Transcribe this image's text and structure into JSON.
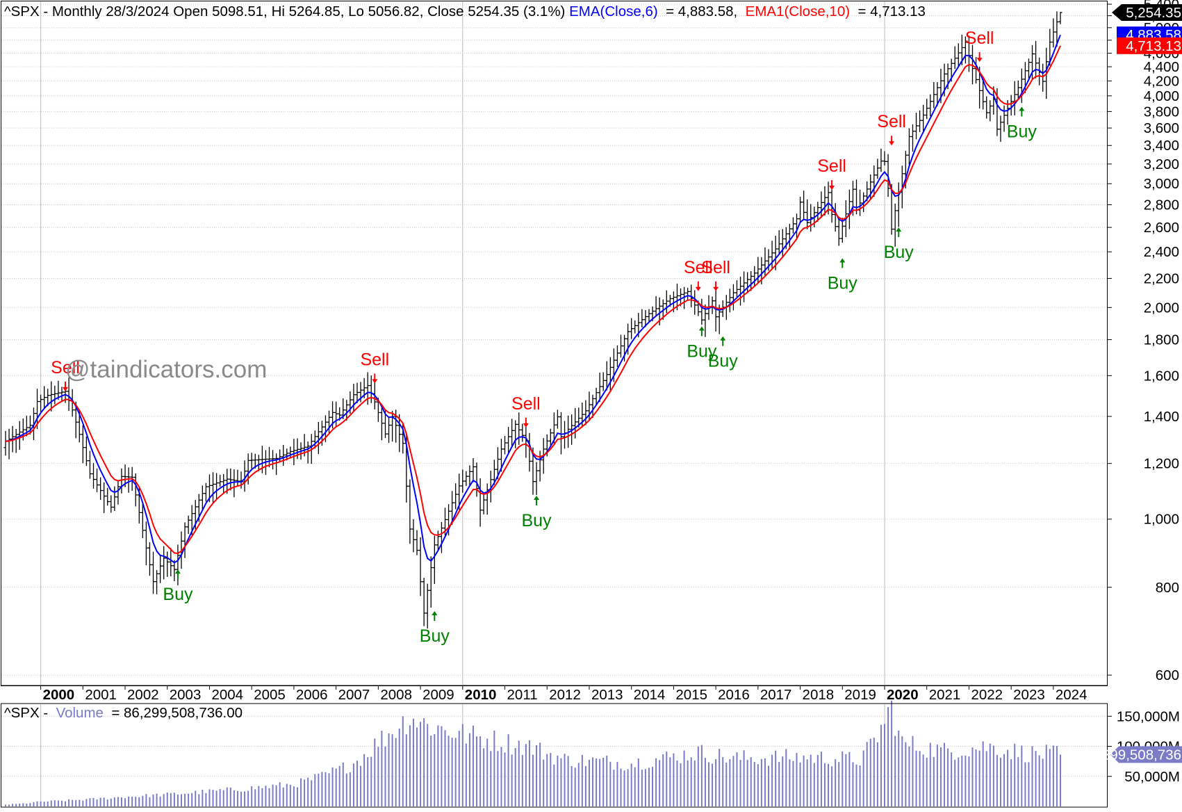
{
  "header": {
    "symbol_line": "^SPX - Monthly 28/3/2024 Open 5098.51, Hi 5264.85, Lo 5056.82, Close 5254.35 (3.1%)",
    "ema6_label": "EMA(Close,6)",
    "ema6_value": " = 4,883.58, ",
    "ema10_label": "EMA1(Close,10)",
    "ema10_value": " = 4,713.13"
  },
  "watermark": "@taindicators.com",
  "volume_header": {
    "prefix": "^SPX - ",
    "label": "Volume",
    "value": " = 86,299,508,736.00"
  },
  "colors": {
    "price_bars": "#000000",
    "ema6": "#0000ff",
    "ema10": "#ff0000",
    "volume": "#7b7bc8",
    "buy": "#008000",
    "sell": "#ff0000",
    "grid": "#c8c8c8",
    "watermark": "#8a8a8a"
  },
  "chart_data": [
    {
      "type": "ohlc",
      "ylim": [
        580,
        5450
      ],
      "y_ticks": [
        600,
        800,
        1000,
        1200,
        1400,
        1600,
        1800,
        2000,
        2200,
        2400,
        2600,
        2800,
        3000,
        3200,
        3400,
        3600,
        3800,
        4000,
        4200,
        4400,
        4600,
        4800,
        5000,
        5200,
        5400
      ],
      "y_tick_labels": [
        "600",
        "800",
        "1,000",
        "1,200",
        "1,400",
        "1,600",
        "1,800",
        "2,000",
        "2,200",
        "2,400",
        "2,600",
        "2,800",
        "3,000",
        "3,200",
        "3,400",
        "3,600",
        "3,800",
        "4,000",
        "4,200",
        "4,400",
        "4,600",
        "4,800",
        "5,000",
        "5,200",
        "5,400"
      ],
      "x_range": [
        "1999-03",
        "2024-03"
      ],
      "x_ticks": [
        {
          "label": "2000",
          "date": "2000-01",
          "bold": true
        },
        {
          "label": "2001",
          "date": "2001-01"
        },
        {
          "label": "2002",
          "date": "2002-01"
        },
        {
          "label": "2003",
          "date": "2003-01"
        },
        {
          "label": "2004",
          "date": "2004-01"
        },
        {
          "label": "2005",
          "date": "2005-01"
        },
        {
          "label": "2006",
          "date": "2006-01"
        },
        {
          "label": "2007",
          "date": "2007-01"
        },
        {
          "label": "2008",
          "date": "2008-01"
        },
        {
          "label": "2009",
          "date": "2009-01"
        },
        {
          "label": "2010",
          "date": "2010-01",
          "bold": true
        },
        {
          "label": "2011",
          "date": "2011-01"
        },
        {
          "label": "2012",
          "date": "2012-01"
        },
        {
          "label": "2013",
          "date": "2013-01"
        },
        {
          "label": "2014",
          "date": "2014-01"
        },
        {
          "label": "2015",
          "date": "2015-01"
        },
        {
          "label": "2016",
          "date": "2016-01"
        },
        {
          "label": "2017",
          "date": "2017-01"
        },
        {
          "label": "2018",
          "date": "2018-01"
        },
        {
          "label": "2019",
          "date": "2019-01"
        },
        {
          "label": "2020",
          "date": "2020-01",
          "bold": true
        },
        {
          "label": "2021",
          "date": "2021-01"
        },
        {
          "label": "2022",
          "date": "2022-01"
        },
        {
          "label": "2023",
          "date": "2023-01"
        },
        {
          "label": "2024",
          "date": "2024-01"
        }
      ],
      "close_anchors": [
        [
          "1999-03",
          1290
        ],
        [
          "1999-07",
          1330
        ],
        [
          "1999-10",
          1360
        ],
        [
          "1999-12",
          1470
        ],
        [
          "2000-03",
          1500
        ],
        [
          "2000-08",
          1520
        ],
        [
          "2000-10",
          1430
        ],
        [
          "2000-12",
          1320
        ],
        [
          "2001-03",
          1160
        ],
        [
          "2001-09",
          1040
        ],
        [
          "2001-12",
          1150
        ],
        [
          "2002-03",
          1147
        ],
        [
          "2002-07",
          910
        ],
        [
          "2002-09",
          815
        ],
        [
          "2002-12",
          880
        ],
        [
          "2003-03",
          848
        ],
        [
          "2003-06",
          975
        ],
        [
          "2003-12",
          1112
        ],
        [
          "2004-06",
          1140
        ],
        [
          "2004-10",
          1130
        ],
        [
          "2004-12",
          1212
        ],
        [
          "2005-08",
          1220
        ],
        [
          "2005-12",
          1248
        ],
        [
          "2006-05",
          1270
        ],
        [
          "2006-12",
          1418
        ],
        [
          "2007-02",
          1406
        ],
        [
          "2007-06",
          1503
        ],
        [
          "2007-10",
          1549
        ],
        [
          "2007-12",
          1468
        ],
        [
          "2008-03",
          1322
        ],
        [
          "2008-05",
          1400
        ],
        [
          "2008-08",
          1282
        ],
        [
          "2008-10",
          968
        ],
        [
          "2008-12",
          903
        ],
        [
          "2009-02",
          735
        ],
        [
          "2009-05",
          919
        ],
        [
          "2009-12",
          1115
        ],
        [
          "2010-04",
          1187
        ],
        [
          "2010-06",
          1030
        ],
        [
          "2010-12",
          1258
        ],
        [
          "2011-04",
          1364
        ],
        [
          "2011-07",
          1292
        ],
        [
          "2011-09",
          1131
        ],
        [
          "2011-12",
          1258
        ],
        [
          "2012-04",
          1398
        ],
        [
          "2012-05",
          1310
        ],
        [
          "2012-12",
          1426
        ],
        [
          "2013-06",
          1606
        ],
        [
          "2013-12",
          1848
        ],
        [
          "2014-06",
          1960
        ],
        [
          "2014-12",
          2059
        ],
        [
          "2015-05",
          2107
        ],
        [
          "2015-08",
          1972
        ],
        [
          "2015-09",
          1920
        ],
        [
          "2015-12",
          2044
        ],
        [
          "2016-01",
          1940
        ],
        [
          "2016-06",
          2099
        ],
        [
          "2016-12",
          2239
        ],
        [
          "2017-06",
          2423
        ],
        [
          "2017-12",
          2674
        ],
        [
          "2018-01",
          2824
        ],
        [
          "2018-03",
          2641
        ],
        [
          "2018-09",
          2914
        ],
        [
          "2018-10",
          2712
        ],
        [
          "2018-12",
          2507
        ],
        [
          "2019-04",
          2946
        ],
        [
          "2019-05",
          2752
        ],
        [
          "2019-12",
          3231
        ],
        [
          "2020-01",
          3226
        ],
        [
          "2020-02",
          2954
        ],
        [
          "2020-03",
          2585
        ],
        [
          "2020-06",
          3100
        ],
        [
          "2020-08",
          3500
        ],
        [
          "2020-12",
          3756
        ],
        [
          "2021-06",
          4297
        ],
        [
          "2021-12",
          4766
        ],
        [
          "2022-02",
          4374
        ],
        [
          "2022-06",
          3785
        ],
        [
          "2022-08",
          3955
        ],
        [
          "2022-09",
          3586
        ],
        [
          "2022-12",
          3840
        ],
        [
          "2023-03",
          4109
        ],
        [
          "2023-07",
          4589
        ],
        [
          "2023-10",
          4194
        ],
        [
          "2023-12",
          4770
        ],
        [
          "2024-02",
          5096
        ],
        [
          "2024-03",
          5254
        ]
      ],
      "last_bar": {
        "date": "2024-03",
        "open": 5098.51,
        "high": 5264.85,
        "low": 5056.82,
        "close": 5254.35
      },
      "series": [
        {
          "name": "EMA(Close,6)",
          "period": 6,
          "last_value": 4883.58,
          "label": "4,883.58",
          "color": "#0000ff"
        },
        {
          "name": "EMA1(Close,10)",
          "period": 10,
          "last_value": 4713.13,
          "label": "4,713.13",
          "color": "#ff0000"
        }
      ],
      "last_close_label": "5,254.35",
      "signals": [
        {
          "type": "Sell",
          "date": "2000-08",
          "price": 1520
        },
        {
          "type": "Buy",
          "date": "2003-04",
          "price": 848
        },
        {
          "type": "Sell",
          "date": "2007-12",
          "price": 1560
        },
        {
          "type": "Buy",
          "date": "2009-05",
          "price": 740
        },
        {
          "type": "Sell",
          "date": "2011-07",
          "price": 1350
        },
        {
          "type": "Buy",
          "date": "2011-10",
          "price": 1080
        },
        {
          "type": "Sell",
          "date": "2015-08",
          "price": 2110
        },
        {
          "type": "Buy",
          "date": "2015-09",
          "price": 1880
        },
        {
          "type": "Sell",
          "date": "2016-01",
          "price": 2110
        },
        {
          "type": "Buy",
          "date": "2016-03",
          "price": 1820
        },
        {
          "type": "Sell",
          "date": "2018-10",
          "price": 2940
        },
        {
          "type": "Buy",
          "date": "2019-01",
          "price": 2350
        },
        {
          "type": "Sell",
          "date": "2020-03",
          "price": 3400
        },
        {
          "type": "Buy",
          "date": "2020-05",
          "price": 2600
        },
        {
          "type": "Sell",
          "date": "2022-04",
          "price": 4470
        },
        {
          "type": "Buy",
          "date": "2023-04",
          "price": 3860
        }
      ]
    },
    {
      "type": "bar",
      "title": "Volume",
      "ylim": [
        0,
        170000
      ],
      "y_unit": "M",
      "y_ticks": [
        50000,
        100000,
        150000
      ],
      "y_tick_labels": [
        "50,000M",
        "100,000M",
        "150,000M"
      ],
      "last_value_label": "86,299,508,736",
      "volume_anchors_millions": [
        [
          "1999-03",
          3000
        ],
        [
          "2000-01",
          8000
        ],
        [
          "2002-01",
          16000
        ],
        [
          "2004-01",
          25000
        ],
        [
          "2006-01",
          37000
        ],
        [
          "2007-06",
          72000
        ],
        [
          "2008-01",
          108000
        ],
        [
          "2008-10",
          150000
        ],
        [
          "2009-03",
          135000
        ],
        [
          "2010-05",
          115000
        ],
        [
          "2011-08",
          100000
        ],
        [
          "2012-06",
          78000
        ],
        [
          "2014-01",
          72000
        ],
        [
          "2015-08",
          90000
        ],
        [
          "2016-06",
          80000
        ],
        [
          "2018-02",
          82000
        ],
        [
          "2019-06",
          78000
        ],
        [
          "2020-03",
          165000
        ],
        [
          "2020-06",
          105000
        ],
        [
          "2021-06",
          92000
        ],
        [
          "2022-06",
          100000
        ],
        [
          "2023-06",
          88000
        ],
        [
          "2024-03",
          86300
        ]
      ]
    }
  ]
}
